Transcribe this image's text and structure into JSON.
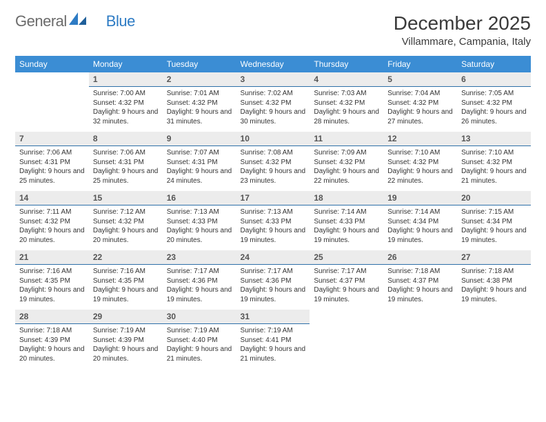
{
  "logo": {
    "text1": "General",
    "text2": "Blue"
  },
  "header": {
    "month_title": "December 2025",
    "location": "Villammare, Campania, Italy"
  },
  "colors": {
    "header_bg": "#3b8dd4",
    "header_text": "#ffffff",
    "daynum_bg": "#ececec",
    "daynum_border": "#2d6fa8",
    "body_text": "#333333",
    "logo_gray": "#6b6b6b",
    "logo_blue": "#2d7bc4"
  },
  "day_labels": [
    "Sunday",
    "Monday",
    "Tuesday",
    "Wednesday",
    "Thursday",
    "Friday",
    "Saturday"
  ],
  "weeks": [
    [
      {
        "n": "",
        "sr": "",
        "ss": "",
        "dl": ""
      },
      {
        "n": "1",
        "sr": "Sunrise: 7:00 AM",
        "ss": "Sunset: 4:32 PM",
        "dl": "Daylight: 9 hours and 32 minutes."
      },
      {
        "n": "2",
        "sr": "Sunrise: 7:01 AM",
        "ss": "Sunset: 4:32 PM",
        "dl": "Daylight: 9 hours and 31 minutes."
      },
      {
        "n": "3",
        "sr": "Sunrise: 7:02 AM",
        "ss": "Sunset: 4:32 PM",
        "dl": "Daylight: 9 hours and 30 minutes."
      },
      {
        "n": "4",
        "sr": "Sunrise: 7:03 AM",
        "ss": "Sunset: 4:32 PM",
        "dl": "Daylight: 9 hours and 28 minutes."
      },
      {
        "n": "5",
        "sr": "Sunrise: 7:04 AM",
        "ss": "Sunset: 4:32 PM",
        "dl": "Daylight: 9 hours and 27 minutes."
      },
      {
        "n": "6",
        "sr": "Sunrise: 7:05 AM",
        "ss": "Sunset: 4:32 PM",
        "dl": "Daylight: 9 hours and 26 minutes."
      }
    ],
    [
      {
        "n": "7",
        "sr": "Sunrise: 7:06 AM",
        "ss": "Sunset: 4:31 PM",
        "dl": "Daylight: 9 hours and 25 minutes."
      },
      {
        "n": "8",
        "sr": "Sunrise: 7:06 AM",
        "ss": "Sunset: 4:31 PM",
        "dl": "Daylight: 9 hours and 25 minutes."
      },
      {
        "n": "9",
        "sr": "Sunrise: 7:07 AM",
        "ss": "Sunset: 4:31 PM",
        "dl": "Daylight: 9 hours and 24 minutes."
      },
      {
        "n": "10",
        "sr": "Sunrise: 7:08 AM",
        "ss": "Sunset: 4:32 PM",
        "dl": "Daylight: 9 hours and 23 minutes."
      },
      {
        "n": "11",
        "sr": "Sunrise: 7:09 AM",
        "ss": "Sunset: 4:32 PM",
        "dl": "Daylight: 9 hours and 22 minutes."
      },
      {
        "n": "12",
        "sr": "Sunrise: 7:10 AM",
        "ss": "Sunset: 4:32 PM",
        "dl": "Daylight: 9 hours and 22 minutes."
      },
      {
        "n": "13",
        "sr": "Sunrise: 7:10 AM",
        "ss": "Sunset: 4:32 PM",
        "dl": "Daylight: 9 hours and 21 minutes."
      }
    ],
    [
      {
        "n": "14",
        "sr": "Sunrise: 7:11 AM",
        "ss": "Sunset: 4:32 PM",
        "dl": "Daylight: 9 hours and 20 minutes."
      },
      {
        "n": "15",
        "sr": "Sunrise: 7:12 AM",
        "ss": "Sunset: 4:32 PM",
        "dl": "Daylight: 9 hours and 20 minutes."
      },
      {
        "n": "16",
        "sr": "Sunrise: 7:13 AM",
        "ss": "Sunset: 4:33 PM",
        "dl": "Daylight: 9 hours and 20 minutes."
      },
      {
        "n": "17",
        "sr": "Sunrise: 7:13 AM",
        "ss": "Sunset: 4:33 PM",
        "dl": "Daylight: 9 hours and 19 minutes."
      },
      {
        "n": "18",
        "sr": "Sunrise: 7:14 AM",
        "ss": "Sunset: 4:33 PM",
        "dl": "Daylight: 9 hours and 19 minutes."
      },
      {
        "n": "19",
        "sr": "Sunrise: 7:14 AM",
        "ss": "Sunset: 4:34 PM",
        "dl": "Daylight: 9 hours and 19 minutes."
      },
      {
        "n": "20",
        "sr": "Sunrise: 7:15 AM",
        "ss": "Sunset: 4:34 PM",
        "dl": "Daylight: 9 hours and 19 minutes."
      }
    ],
    [
      {
        "n": "21",
        "sr": "Sunrise: 7:16 AM",
        "ss": "Sunset: 4:35 PM",
        "dl": "Daylight: 9 hours and 19 minutes."
      },
      {
        "n": "22",
        "sr": "Sunrise: 7:16 AM",
        "ss": "Sunset: 4:35 PM",
        "dl": "Daylight: 9 hours and 19 minutes."
      },
      {
        "n": "23",
        "sr": "Sunrise: 7:17 AM",
        "ss": "Sunset: 4:36 PM",
        "dl": "Daylight: 9 hours and 19 minutes."
      },
      {
        "n": "24",
        "sr": "Sunrise: 7:17 AM",
        "ss": "Sunset: 4:36 PM",
        "dl": "Daylight: 9 hours and 19 minutes."
      },
      {
        "n": "25",
        "sr": "Sunrise: 7:17 AM",
        "ss": "Sunset: 4:37 PM",
        "dl": "Daylight: 9 hours and 19 minutes."
      },
      {
        "n": "26",
        "sr": "Sunrise: 7:18 AM",
        "ss": "Sunset: 4:37 PM",
        "dl": "Daylight: 9 hours and 19 minutes."
      },
      {
        "n": "27",
        "sr": "Sunrise: 7:18 AM",
        "ss": "Sunset: 4:38 PM",
        "dl": "Daylight: 9 hours and 19 minutes."
      }
    ],
    [
      {
        "n": "28",
        "sr": "Sunrise: 7:18 AM",
        "ss": "Sunset: 4:39 PM",
        "dl": "Daylight: 9 hours and 20 minutes."
      },
      {
        "n": "29",
        "sr": "Sunrise: 7:19 AM",
        "ss": "Sunset: 4:39 PM",
        "dl": "Daylight: 9 hours and 20 minutes."
      },
      {
        "n": "30",
        "sr": "Sunrise: 7:19 AM",
        "ss": "Sunset: 4:40 PM",
        "dl": "Daylight: 9 hours and 21 minutes."
      },
      {
        "n": "31",
        "sr": "Sunrise: 7:19 AM",
        "ss": "Sunset: 4:41 PM",
        "dl": "Daylight: 9 hours and 21 minutes."
      },
      {
        "n": "",
        "sr": "",
        "ss": "",
        "dl": ""
      },
      {
        "n": "",
        "sr": "",
        "ss": "",
        "dl": ""
      },
      {
        "n": "",
        "sr": "",
        "ss": "",
        "dl": ""
      }
    ]
  ]
}
